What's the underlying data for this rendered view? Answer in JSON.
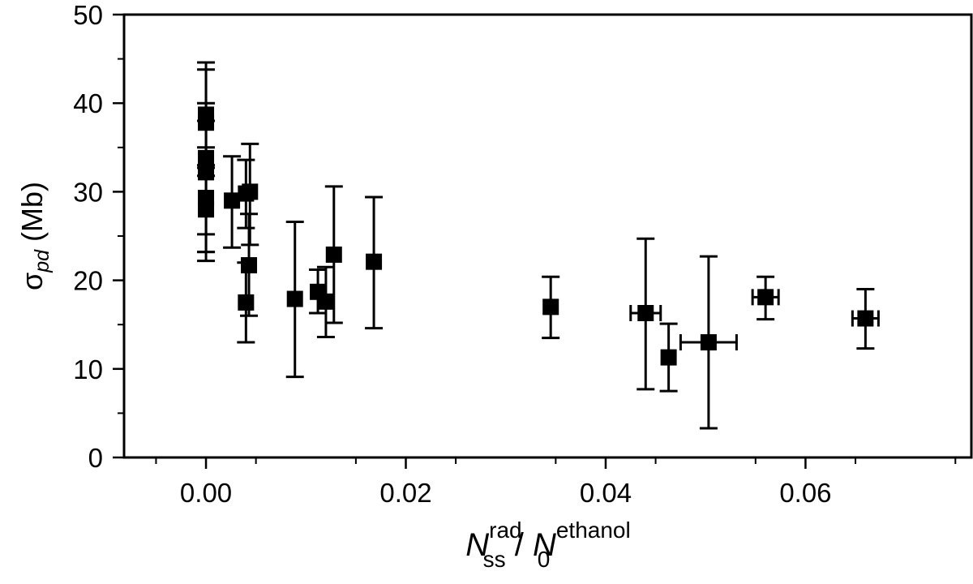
{
  "chart_data": {
    "type": "scatter",
    "xlabel": {
      "main": "N",
      "sub": "ss",
      "sup": "rad",
      "sep": " / ",
      "main2": "N",
      "sub2": "0",
      "sup2": "ethanol"
    },
    "ylabel": {
      "symbol": "σ",
      "sub": "pd",
      "unit": " (Mb)"
    },
    "xlim": [
      -0.0082,
      0.0766
    ],
    "ylim": [
      0,
      50
    ],
    "xticks": [
      0.0,
      0.02,
      0.04,
      0.06
    ],
    "xtick_labels": [
      "0.00",
      "0.02",
      "0.04",
      "0.06"
    ],
    "yticks": [
      0,
      10,
      20,
      30,
      40,
      50
    ],
    "ytick_labels": [
      "0",
      "10",
      "20",
      "30",
      "40",
      "50"
    ],
    "grid": false,
    "marker": "square",
    "color": "#000000",
    "points": [
      {
        "x": 0.0,
        "y": 38.7,
        "ylo": 32.7,
        "yhi": 44.6,
        "xerr": 0
      },
      {
        "x": 0.0,
        "y": 37.8,
        "ylo": 31.8,
        "yhi": 43.8,
        "xerr": 0
      },
      {
        "x": 0.0,
        "y": 33.8,
        "ylo": 25.2,
        "yhi": 40.0,
        "xerr": 0
      },
      {
        "x": 0.0,
        "y": 32.2,
        "ylo": 23.2,
        "yhi": 38.0,
        "xerr": 0
      },
      {
        "x": 0.0,
        "y": 29.3,
        "ylo": 22.2,
        "yhi": 35.0,
        "xerr": 0
      },
      {
        "x": 0.0,
        "y": 28.0,
        "ylo": 23.2,
        "yhi": 33.0,
        "xerr": 0
      },
      {
        "x": 0.0026,
        "y": 29.0,
        "ylo": 23.7,
        "yhi": 34.0,
        "xerr": 0
      },
      {
        "x": 0.004,
        "y": 29.8,
        "ylo": 25.9,
        "yhi": 33.6,
        "xerr": 0
      },
      {
        "x": 0.0044,
        "y": 30.0,
        "ylo": 24.0,
        "yhi": 35.4,
        "xerr": 0
      },
      {
        "x": 0.0043,
        "y": 21.7,
        "ylo": 16.0,
        "yhi": 27.5,
        "xerr": 0
      },
      {
        "x": 0.004,
        "y": 17.5,
        "ylo": 13.0,
        "yhi": 22.0,
        "xerr": 0
      },
      {
        "x": 0.0089,
        "y": 17.9,
        "ylo": 9.1,
        "yhi": 26.6,
        "xerr": 0
      },
      {
        "x": 0.0112,
        "y": 18.7,
        "ylo": 16.3,
        "yhi": 21.2,
        "xerr": 0
      },
      {
        "x": 0.012,
        "y": 17.6,
        "ylo": 13.6,
        "yhi": 21.5,
        "xerr": 0
      },
      {
        "x": 0.0128,
        "y": 22.9,
        "ylo": 15.2,
        "yhi": 30.6,
        "xerr": 0
      },
      {
        "x": 0.0168,
        "y": 22.1,
        "ylo": 14.6,
        "yhi": 29.4,
        "xerr": 0
      },
      {
        "x": 0.0345,
        "y": 17.0,
        "ylo": 13.5,
        "yhi": 20.4,
        "xerr": 0
      },
      {
        "x": 0.044,
        "y": 16.3,
        "ylo": 7.7,
        "yhi": 24.7,
        "xerr": 0.0015
      },
      {
        "x": 0.0463,
        "y": 11.3,
        "ylo": 7.5,
        "yhi": 15.1,
        "xerr": 0
      },
      {
        "x": 0.0503,
        "y": 13.0,
        "ylo": 3.3,
        "yhi": 22.7,
        "xerr": 0.0028
      },
      {
        "x": 0.056,
        "y": 18.1,
        "ylo": 15.6,
        "yhi": 20.4,
        "xerr": 0.0013
      },
      {
        "x": 0.066,
        "y": 15.7,
        "ylo": 12.3,
        "yhi": 19.0,
        "xerr": 0.0013
      }
    ]
  }
}
